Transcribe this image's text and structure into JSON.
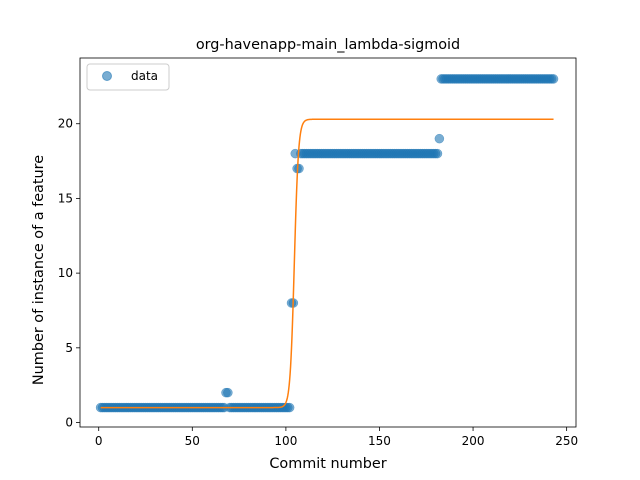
{
  "chart_data": {
    "type": "scatter",
    "title": "org-havenapp-main_lambda-sigmoid",
    "xlabel": "Commit number",
    "ylabel": "Number of instance of a feature",
    "xlim": [
      -10,
      255
    ],
    "ylim": [
      -0.3,
      24.4
    ],
    "xticks": [
      0,
      50,
      100,
      150,
      200,
      250
    ],
    "yticks": [
      0,
      5,
      10,
      15,
      20
    ],
    "grid": false,
    "legend": {
      "placement": "upper-left",
      "entries": [
        "data"
      ]
    },
    "colors": {
      "data": "#1f77b4",
      "fit": "#ff7f0e"
    },
    "series": [
      {
        "name": "data",
        "kind": "scatter",
        "runs": [
          {
            "x_start": 1,
            "x_end": 67,
            "y": 1
          },
          {
            "x_start": 68,
            "x_end": 69,
            "y": 2
          },
          {
            "x_start": 70,
            "x_end": 102,
            "y": 1
          },
          {
            "x_start": 103,
            "x_end": 104,
            "y": 8
          },
          {
            "x_start": 105,
            "x_end": 105,
            "y": 18
          },
          {
            "x_start": 106,
            "x_end": 107,
            "y": 17
          },
          {
            "x_start": 108,
            "x_end": 181,
            "y": 18
          },
          {
            "x_start": 182,
            "x_end": 182,
            "y": 19
          },
          {
            "x_start": 183,
            "x_end": 243,
            "y": 23
          }
        ]
      },
      {
        "kind": "line",
        "model": "sigmoid",
        "params": {
          "L": 19.3,
          "k": 0.9,
          "x0": 104.5,
          "b": 1.0
        },
        "x_range": [
          1,
          243
        ]
      }
    ]
  }
}
